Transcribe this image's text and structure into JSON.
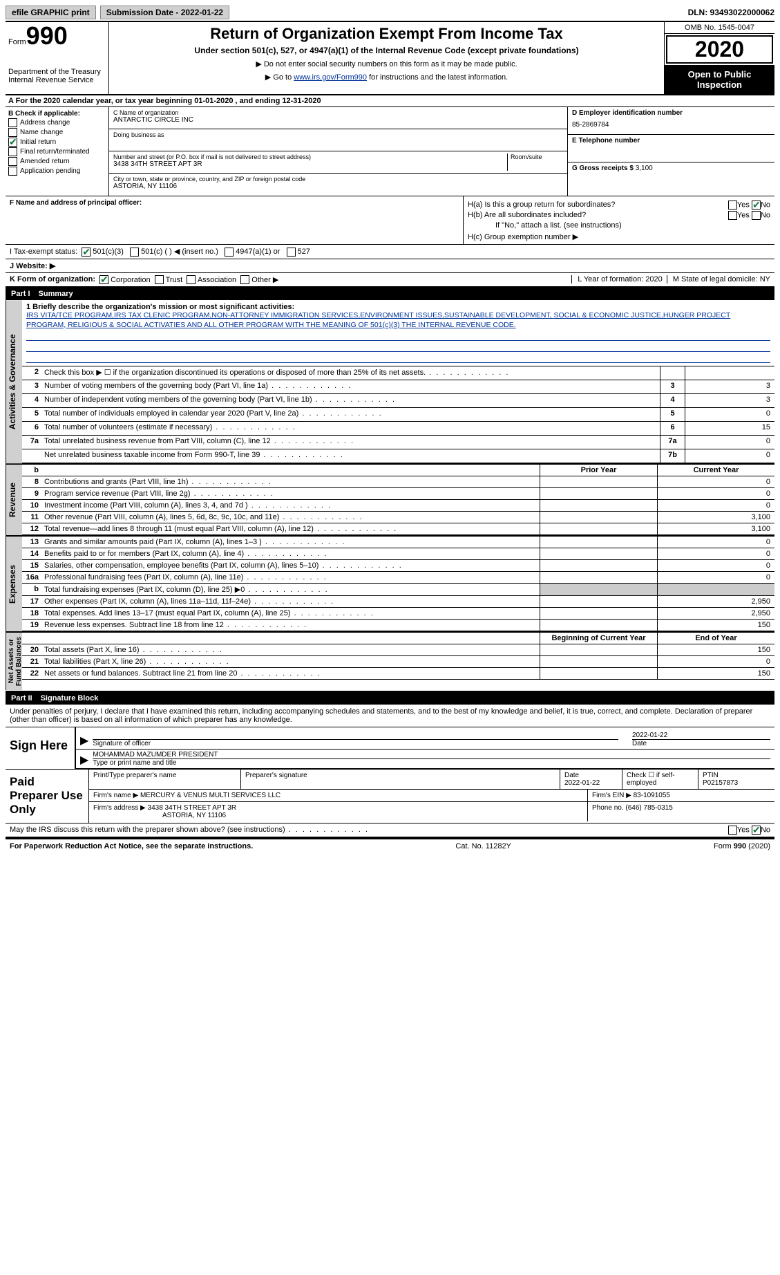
{
  "topbar": {
    "efile": "efile GRAPHIC print",
    "sub_date_label": "Submission Date - 2022-01-22",
    "dln": "DLN: 93493022000062"
  },
  "header": {
    "form_word": "Form",
    "form_num": "990",
    "dept": "Department of the Treasury\nInternal Revenue Service",
    "title": "Return of Organization Exempt From Income Tax",
    "subtitle": "Under section 501(c), 527, or 4947(a)(1) of the Internal Revenue Code (except private foundations)",
    "note1": "▶ Do not enter social security numbers on this form as it may be made public.",
    "note2_pre": "▶ Go to ",
    "note2_link": "www.irs.gov/Form990",
    "note2_post": " for instructions and the latest information.",
    "omb": "OMB No. 1545-0047",
    "year": "2020",
    "open": "Open to Public Inspection"
  },
  "row_a": "A For the 2020 calendar year, or tax year beginning 01-01-2020    , and ending 12-31-2020",
  "box_b": {
    "label": "B Check if applicable:",
    "items": [
      "Address change",
      "Name change",
      "Initial return",
      "Final return/terminated",
      "Amended return",
      "Application pending"
    ],
    "checked_idx": 2
  },
  "box_c": {
    "name_label": "C Name of organization",
    "name": "ANTARCTIC CIRCLE INC",
    "dba_label": "Doing business as",
    "dba": "",
    "addr_label": "Number and street (or P.O. box if mail is not delivered to street address)",
    "room_label": "Room/suite",
    "addr": "3438 34TH STREET APT 3R",
    "city_label": "City or town, state or province, country, and ZIP or foreign postal code",
    "city": "ASTORIA, NY  11106"
  },
  "box_d": {
    "label": "D Employer identification number",
    "value": "85-2869784"
  },
  "box_e": {
    "label": "E Telephone number",
    "value": ""
  },
  "box_g": {
    "label": "G Gross receipts $",
    "value": "3,100"
  },
  "box_f": {
    "label": "F  Name and address of principal officer:",
    "value": ""
  },
  "box_h": {
    "a": "H(a)  Is this a group return for subordinates?",
    "a_yes": "Yes",
    "a_no": "No",
    "a_checked": "no",
    "b": "H(b)  Are all subordinates included?",
    "b_yes": "Yes",
    "b_no": "No",
    "b_note": "If \"No,\" attach a list. (see instructions)",
    "c": "H(c)  Group exemption number ▶"
  },
  "row_i": {
    "label": "I   Tax-exempt status:",
    "opts": [
      "501(c)(3)",
      "501(c) (  ) ◀ (insert no.)",
      "4947(a)(1) or",
      "527"
    ],
    "checked_idx": 0
  },
  "row_j": "J   Website: ▶",
  "row_k": {
    "label": "K Form of organization:",
    "opts": [
      "Corporation",
      "Trust",
      "Association",
      "Other ▶"
    ],
    "checked_idx": 0,
    "l": "L Year of formation: 2020",
    "m": "M State of legal domicile: NY"
  },
  "part1": {
    "num": "Part I",
    "title": "Summary"
  },
  "mission": {
    "label": "1  Briefly describe the organization's mission or most significant activities:",
    "text": "IRS VITA/TCE PROGRAM,IRS TAX CLENIC PROGRAM,NON-ATTORNEY IMMIGRATION SERVICES,ENVIRONMENT ISSUES,SUSTAINABLE DEVELOPMENT, SOCIAL & ECONOMIC JUSTICE,HUNGER PROJECT PROGRAM, RELIGIOUS & SOCIAL ACTIVATIES AND ALL OTHER PROGRAM WITH THE MEANING OF 501(c)(3) THE INTERNAL REVENUE CODE."
  },
  "gov_lines": [
    {
      "n": "2",
      "t": "Check this box ▶ ☐ if the organization discontinued its operations or disposed of more than 25% of its net assets.",
      "box": "",
      "val": ""
    },
    {
      "n": "3",
      "t": "Number of voting members of the governing body (Part VI, line 1a)",
      "box": "3",
      "val": "3"
    },
    {
      "n": "4",
      "t": "Number of independent voting members of the governing body (Part VI, line 1b)",
      "box": "4",
      "val": "3"
    },
    {
      "n": "5",
      "t": "Total number of individuals employed in calendar year 2020 (Part V, line 2a)",
      "box": "5",
      "val": "0"
    },
    {
      "n": "6",
      "t": "Total number of volunteers (estimate if necessary)",
      "box": "6",
      "val": "15"
    },
    {
      "n": "7a",
      "t": "Total unrelated business revenue from Part VIII, column (C), line 12",
      "box": "7a",
      "val": "0"
    },
    {
      "n": "",
      "t": "Net unrelated business taxable income from Form 990-T, line 39",
      "box": "7b",
      "val": "0"
    }
  ],
  "rev_hdr": {
    "prior": "Prior Year",
    "current": "Current Year"
  },
  "rev_lines": [
    {
      "n": "8",
      "t": "Contributions and grants (Part VIII, line 1h)",
      "p": "",
      "c": "0"
    },
    {
      "n": "9",
      "t": "Program service revenue (Part VIII, line 2g)",
      "p": "",
      "c": "0"
    },
    {
      "n": "10",
      "t": "Investment income (Part VIII, column (A), lines 3, 4, and 7d )",
      "p": "",
      "c": "0"
    },
    {
      "n": "11",
      "t": "Other revenue (Part VIII, column (A), lines 5, 6d, 8c, 9c, 10c, and 11e)",
      "p": "",
      "c": "3,100"
    },
    {
      "n": "12",
      "t": "Total revenue—add lines 8 through 11 (must equal Part VIII, column (A), line 12)",
      "p": "",
      "c": "3,100"
    }
  ],
  "exp_lines": [
    {
      "n": "13",
      "t": "Grants and similar amounts paid (Part IX, column (A), lines 1–3 )",
      "p": "",
      "c": "0"
    },
    {
      "n": "14",
      "t": "Benefits paid to or for members (Part IX, column (A), line 4)",
      "p": "",
      "c": "0"
    },
    {
      "n": "15",
      "t": "Salaries, other compensation, employee benefits (Part IX, column (A), lines 5–10)",
      "p": "",
      "c": "0"
    },
    {
      "n": "16a",
      "t": "Professional fundraising fees (Part IX, column (A), line 11e)",
      "p": "",
      "c": "0"
    },
    {
      "n": "b",
      "t": "Total fundraising expenses (Part IX, column (D), line 25) ▶0",
      "p": "—",
      "c": "—"
    },
    {
      "n": "17",
      "t": "Other expenses (Part IX, column (A), lines 11a–11d, 11f–24e)",
      "p": "",
      "c": "2,950"
    },
    {
      "n": "18",
      "t": "Total expenses. Add lines 13–17 (must equal Part IX, column (A), line 25)",
      "p": "",
      "c": "2,950"
    },
    {
      "n": "19",
      "t": "Revenue less expenses. Subtract line 18 from line 12",
      "p": "",
      "c": "150"
    }
  ],
  "net_hdr": {
    "prior": "Beginning of Current Year",
    "current": "End of Year"
  },
  "net_lines": [
    {
      "n": "20",
      "t": "Total assets (Part X, line 16)",
      "p": "",
      "c": "150"
    },
    {
      "n": "21",
      "t": "Total liabilities (Part X, line 26)",
      "p": "",
      "c": "0"
    },
    {
      "n": "22",
      "t": "Net assets or fund balances. Subtract line 21 from line 20",
      "p": "",
      "c": "150"
    }
  ],
  "side_labels": {
    "gov": "Activities & Governance",
    "rev": "Revenue",
    "exp": "Expenses",
    "net": "Net Assets or\nFund Balances"
  },
  "part2": {
    "num": "Part II",
    "title": "Signature Block"
  },
  "sig": {
    "decl": "Under penalties of perjury, I declare that I have examined this return, including accompanying schedules and statements, and to the best of my knowledge and belief, it is true, correct, and complete. Declaration of preparer (other than officer) is based on all information of which preparer has any knowledge.",
    "sign_here": "Sign Here",
    "sig_officer": "Signature of officer",
    "date": "2022-01-22",
    "date_lbl": "Date",
    "name": "MOHAMMAD MAZUMDER  PRESIDENT",
    "name_lbl": "Type or print name and title"
  },
  "paid": {
    "label": "Paid Preparer Use Only",
    "h1": "Print/Type preparer's name",
    "h2": "Preparer's signature",
    "h3": "Date",
    "h3v": "2022-01-22",
    "h4": "Check ☐ if self-employed",
    "h5": "PTIN",
    "h5v": "P02157873",
    "firm_lbl": "Firm's name    ▶",
    "firm": "MERCURY & VENUS MULTI SERVICES LLC",
    "ein_lbl": "Firm's EIN ▶",
    "ein": "83-1091055",
    "addr_lbl": "Firm's address ▶",
    "addr1": "3438 34TH STREET APT 3R",
    "addr2": "ASTORIA, NY  11106",
    "phone_lbl": "Phone no.",
    "phone": "(646) 785-0315"
  },
  "may_irs": {
    "q": "May the IRS discuss this return with the preparer shown above? (see instructions)",
    "yes": "Yes",
    "no": "No",
    "checked": "no"
  },
  "footer": {
    "left": "For Paperwork Reduction Act Notice, see the separate instructions.",
    "mid": "Cat. No. 11282Y",
    "right": "Form 990 (2020)"
  },
  "colors": {
    "link": "#003399",
    "check": "#0a7a3a",
    "side": "#d0d0d0"
  }
}
